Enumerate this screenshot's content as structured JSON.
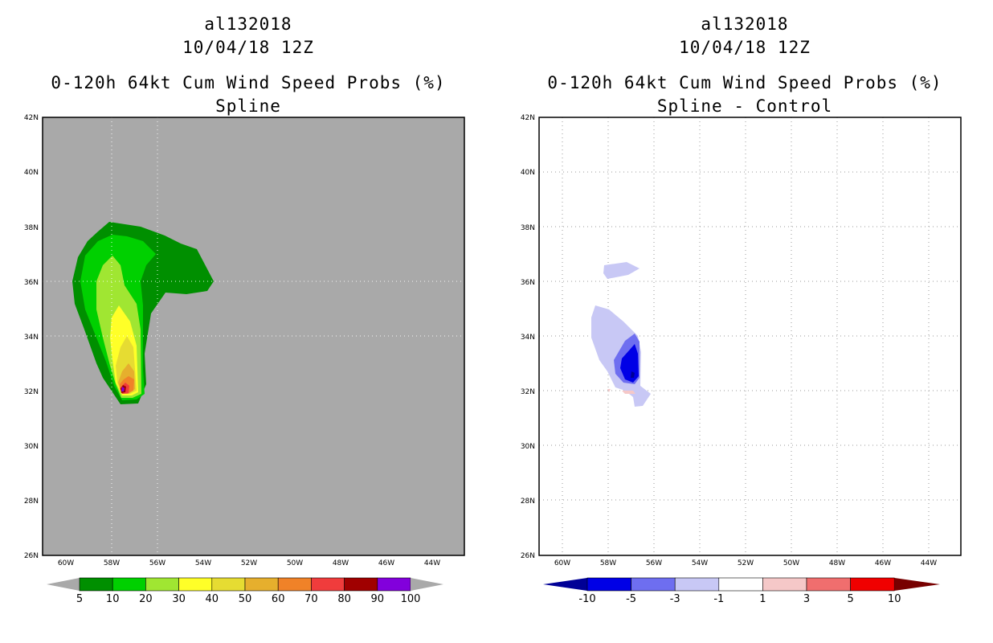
{
  "left": {
    "title_line1": "al132018",
    "title_line2": "10/04/18 12Z",
    "title_line3": "0-120h 64kt Cum Wind Speed Probs (%)",
    "title_line4": "Spline",
    "background_color": "#a9a9a9",
    "colorbar": {
      "colors": [
        "#008f00",
        "#00d000",
        "#a0e632",
        "#ffff28",
        "#e6dc32",
        "#e6af2d",
        "#f08228",
        "#f03c3c",
        "#a00000",
        "#8200dc"
      ],
      "under_color": "#a9a9a9",
      "over_color": "#a9a9a9",
      "labels": [
        "5",
        "10",
        "20",
        "30",
        "40",
        "50",
        "60",
        "70",
        "80",
        "90",
        "100"
      ]
    }
  },
  "right": {
    "title_line1": "al132018",
    "title_line2": "10/04/18 12Z",
    "title_line3": "0-120h 64kt Cum Wind Speed Probs (%)",
    "title_line4": "Spline - Control",
    "background_color": "#ffffff",
    "colorbar": {
      "colors": [
        "#0000e6",
        "#6e6ef0",
        "#c8c8f5",
        "#ffffff",
        "#f5c8c8",
        "#f06e6e",
        "#f00000"
      ],
      "under_color": "#000096",
      "over_color": "#780000",
      "labels": [
        "-10",
        "-5",
        "-3",
        "-1",
        "1",
        "3",
        "5",
        "10"
      ]
    }
  },
  "axes": {
    "lat_labels": [
      "42N",
      "40N",
      "38N",
      "36N",
      "34N",
      "32N",
      "30N",
      "28N",
      "26N"
    ],
    "lon_labels": [
      "60W",
      "58W",
      "56W",
      "54W",
      "52W",
      "50W",
      "48W",
      "46W",
      "44W"
    ]
  }
}
